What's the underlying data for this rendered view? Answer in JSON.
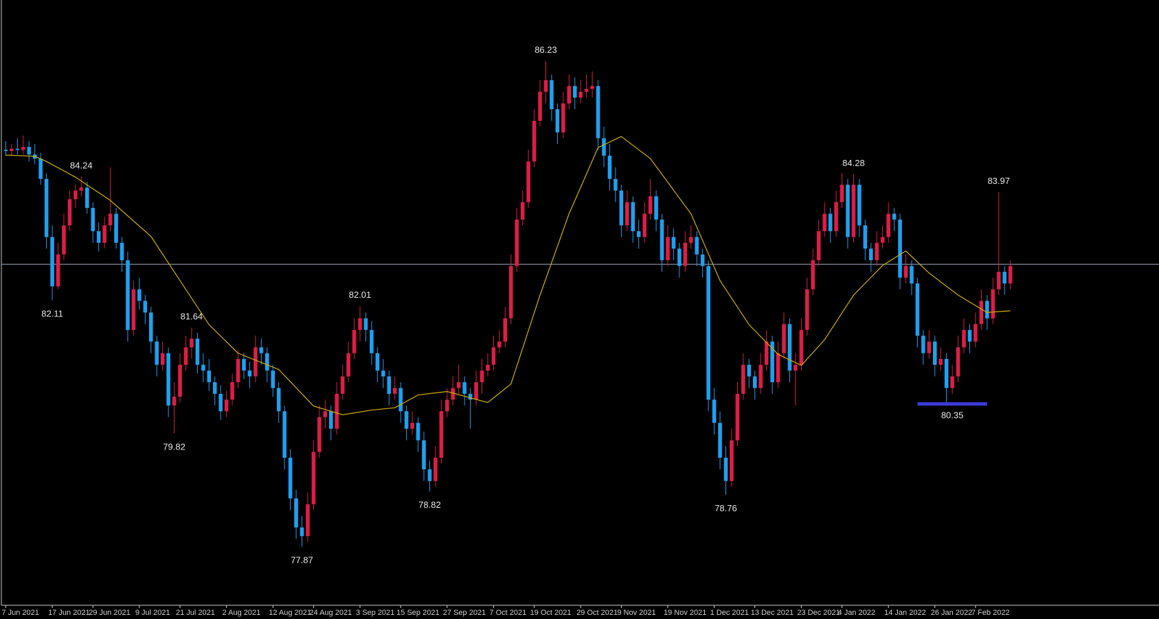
{
  "chart_data": {
    "type": "candlestick",
    "up_color": "#dc1e46",
    "down_color": "#1ea0f0",
    "xlim": [
      -1,
      198.6
    ],
    "ylim": [
      76.86,
      87.28
    ],
    "xticks": [
      {
        "value": 0,
        "label": "7 Jun 2021"
      },
      {
        "value": 8,
        "label": "17 Jun 2021"
      },
      {
        "value": 15,
        "label": "29 Jun 2021"
      },
      {
        "value": 23,
        "label": "9 Jul 2021"
      },
      {
        "value": 30,
        "label": "21 Jul 2021"
      },
      {
        "value": 38,
        "label": "2 Aug 2021"
      },
      {
        "value": 46,
        "label": "12 Aug 2021"
      },
      {
        "value": 53,
        "label": "24 Aug 2021"
      },
      {
        "value": 61,
        "label": "3 Sep 2021"
      },
      {
        "value": 68,
        "label": "15 Sep 2021"
      },
      {
        "value": 76,
        "label": "27 Sep 2021"
      },
      {
        "value": 84,
        "label": "7 Oct 2021"
      },
      {
        "value": 91,
        "label": "19 Oct 2021"
      },
      {
        "value": 99,
        "label": "29 Oct 2021"
      },
      {
        "value": 106,
        "label": "9 Nov 2021"
      },
      {
        "value": 114,
        "label": "19 Nov 2021"
      },
      {
        "value": 122,
        "label": "1 Dec 2021"
      },
      {
        "value": 129,
        "label": "13 Dec 2021"
      },
      {
        "value": 137,
        "label": "23 Dec 2021"
      },
      {
        "value": 144,
        "label": "4 Jan 2022"
      },
      {
        "value": 152,
        "label": "14 Jan 2022"
      },
      {
        "value": 160,
        "label": "26 Jan 2022"
      },
      {
        "value": 167,
        "label": "7 Feb 2022"
      }
    ],
    "candles": [
      [
        84.7,
        84.85,
        84.6,
        84.68
      ],
      [
        84.68,
        84.8,
        84.6,
        84.72
      ],
      [
        84.72,
        84.9,
        84.62,
        84.7
      ],
      [
        84.7,
        84.95,
        84.62,
        84.75
      ],
      [
        84.75,
        84.85,
        84.5,
        84.62
      ],
      [
        84.62,
        84.8,
        84.45,
        84.55
      ],
      [
        84.55,
        84.65,
        84.1,
        84.2
      ],
      [
        84.2,
        84.3,
        83.0,
        83.2
      ],
      [
        83.2,
        83.4,
        82.11,
        82.35
      ],
      [
        82.35,
        83.1,
        82.3,
        82.9
      ],
      [
        82.9,
        83.6,
        82.8,
        83.4
      ],
      [
        83.4,
        84.0,
        83.3,
        83.85
      ],
      [
        83.85,
        84.1,
        83.7,
        84.0
      ],
      [
        84.0,
        84.24,
        83.9,
        84.05
      ],
      [
        84.05,
        84.15,
        83.6,
        83.7
      ],
      [
        83.7,
        83.8,
        83.1,
        83.3
      ],
      [
        83.3,
        83.45,
        82.95,
        83.1
      ],
      [
        83.1,
        83.55,
        83.0,
        83.4
      ],
      [
        83.4,
        84.4,
        83.3,
        83.6
      ],
      [
        83.6,
        83.7,
        83.0,
        83.1
      ],
      [
        83.1,
        83.2,
        82.6,
        82.8
      ],
      [
        82.8,
        82.95,
        81.4,
        81.6
      ],
      [
        81.6,
        82.45,
        81.5,
        82.3
      ],
      [
        82.3,
        82.5,
        81.95,
        82.1
      ],
      [
        82.1,
        82.2,
        81.7,
        81.9
      ],
      [
        81.9,
        82.0,
        81.2,
        81.4
      ],
      [
        81.4,
        81.5,
        80.8,
        81.0
      ],
      [
        81.0,
        81.4,
        80.9,
        81.2
      ],
      [
        81.2,
        81.3,
        80.1,
        80.3
      ],
      [
        80.3,
        80.7,
        79.82,
        80.45
      ],
      [
        80.45,
        81.2,
        80.35,
        81.0
      ],
      [
        81.0,
        81.5,
        80.9,
        81.3
      ],
      [
        81.3,
        81.64,
        81.1,
        81.45
      ],
      [
        81.45,
        81.55,
        80.85,
        81.0
      ],
      [
        81.0,
        81.2,
        80.7,
        80.9
      ],
      [
        80.9,
        81.1,
        80.55,
        80.7
      ],
      [
        80.7,
        80.8,
        80.3,
        80.5
      ],
      [
        80.5,
        80.65,
        80.05,
        80.2
      ],
      [
        80.2,
        80.55,
        80.1,
        80.4
      ],
      [
        80.4,
        80.85,
        80.3,
        80.7
      ],
      [
        80.7,
        81.25,
        80.6,
        81.1
      ],
      [
        81.1,
        81.2,
        80.75,
        80.9
      ],
      [
        80.9,
        81.05,
        80.6,
        80.8
      ],
      [
        80.8,
        81.5,
        80.7,
        81.3
      ],
      [
        81.3,
        81.45,
        81.0,
        81.2
      ],
      [
        81.2,
        81.3,
        80.7,
        80.9
      ],
      [
        80.9,
        81.0,
        80.45,
        80.6
      ],
      [
        80.6,
        80.7,
        80.0,
        80.2
      ],
      [
        80.2,
        80.3,
        79.2,
        79.4
      ],
      [
        79.4,
        79.55,
        78.5,
        78.7
      ],
      [
        78.7,
        78.85,
        78.0,
        78.2
      ],
      [
        78.2,
        78.4,
        77.87,
        78.05
      ],
      [
        78.05,
        78.8,
        77.95,
        78.6
      ],
      [
        78.6,
        79.7,
        78.5,
        79.5
      ],
      [
        79.5,
        80.3,
        79.4,
        80.1
      ],
      [
        80.1,
        80.4,
        79.9,
        80.2
      ],
      [
        80.2,
        80.3,
        79.7,
        79.9
      ],
      [
        79.9,
        80.7,
        79.8,
        80.5
      ],
      [
        80.5,
        81.0,
        80.4,
        80.8
      ],
      [
        80.8,
        81.4,
        80.7,
        81.2
      ],
      [
        81.2,
        81.8,
        81.1,
        81.6
      ],
      [
        81.6,
        82.01,
        81.4,
        81.8
      ],
      [
        81.8,
        81.9,
        81.4,
        81.6
      ],
      [
        81.6,
        81.75,
        81.0,
        81.2
      ],
      [
        81.2,
        81.3,
        80.7,
        80.9
      ],
      [
        80.9,
        81.1,
        80.6,
        80.8
      ],
      [
        80.8,
        80.9,
        80.3,
        80.5
      ],
      [
        80.5,
        80.8,
        80.4,
        80.6
      ],
      [
        80.6,
        80.7,
        80.0,
        80.2
      ],
      [
        80.2,
        80.3,
        79.7,
        79.9
      ],
      [
        79.9,
        80.2,
        79.8,
        80.0
      ],
      [
        80.0,
        80.1,
        79.5,
        79.7
      ],
      [
        79.7,
        79.85,
        79.0,
        79.2
      ],
      [
        79.2,
        79.35,
        78.82,
        79.0
      ],
      [
        79.0,
        79.6,
        78.9,
        79.4
      ],
      [
        79.4,
        80.4,
        79.3,
        80.2
      ],
      [
        80.2,
        80.6,
        80.1,
        80.4
      ],
      [
        80.4,
        80.8,
        80.3,
        80.6
      ],
      [
        80.6,
        81.0,
        80.5,
        80.7
      ],
      [
        80.7,
        80.8,
        80.3,
        80.5
      ],
      [
        80.5,
        80.6,
        79.9,
        80.4
      ],
      [
        80.4,
        80.9,
        80.3,
        80.7
      ],
      [
        80.7,
        81.1,
        80.5,
        80.9
      ],
      [
        80.9,
        81.2,
        80.8,
        81.0
      ],
      [
        81.0,
        81.5,
        80.9,
        81.3
      ],
      [
        81.3,
        81.6,
        81.2,
        81.4
      ],
      [
        81.4,
        82.0,
        81.3,
        81.8
      ],
      [
        81.8,
        82.9,
        81.7,
        82.7
      ],
      [
        82.7,
        83.7,
        82.6,
        83.5
      ],
      [
        83.5,
        84.0,
        83.4,
        83.8
      ],
      [
        83.8,
        84.7,
        83.7,
        84.5
      ],
      [
        84.5,
        85.4,
        84.4,
        85.2
      ],
      [
        85.2,
        85.9,
        85.1,
        85.7
      ],
      [
        85.7,
        86.23,
        85.5,
        85.9
      ],
      [
        85.9,
        86.0,
        85.2,
        85.4
      ],
      [
        85.4,
        85.5,
        84.8,
        85.0
      ],
      [
        85.0,
        85.7,
        84.9,
        85.5
      ],
      [
        85.5,
        86.0,
        85.4,
        85.8
      ],
      [
        85.8,
        85.95,
        85.4,
        85.6
      ],
      [
        85.6,
        85.9,
        85.5,
        85.7
      ],
      [
        85.7,
        86.0,
        85.6,
        85.75
      ],
      [
        85.75,
        86.05,
        85.6,
        85.8
      ],
      [
        85.8,
        85.9,
        84.7,
        84.9
      ],
      [
        84.9,
        85.1,
        84.4,
        84.6
      ],
      [
        84.6,
        84.8,
        84.0,
        84.2
      ],
      [
        84.2,
        84.4,
        83.8,
        84.0
      ],
      [
        84.0,
        84.1,
        83.2,
        83.4
      ],
      [
        83.4,
        84.0,
        83.3,
        83.8
      ],
      [
        83.8,
        83.9,
        83.1,
        83.3
      ],
      [
        83.3,
        83.5,
        83.0,
        83.2
      ],
      [
        83.2,
        83.8,
        83.1,
        83.6
      ],
      [
        83.6,
        84.2,
        83.5,
        83.9
      ],
      [
        83.9,
        84.0,
        83.3,
        83.5
      ],
      [
        83.5,
        83.6,
        82.6,
        82.8
      ],
      [
        82.8,
        83.4,
        82.7,
        83.2
      ],
      [
        83.2,
        83.35,
        82.8,
        83.0
      ],
      [
        83.0,
        83.1,
        82.5,
        82.7
      ],
      [
        82.7,
        83.3,
        82.6,
        83.1
      ],
      [
        83.1,
        83.4,
        83.0,
        83.2
      ],
      [
        83.2,
        83.3,
        82.7,
        82.9
      ],
      [
        82.9,
        83.0,
        82.5,
        82.7
      ],
      [
        82.7,
        82.8,
        80.2,
        80.4
      ],
      [
        80.4,
        80.6,
        79.8,
        80.0
      ],
      [
        80.0,
        80.2,
        79.2,
        79.4
      ],
      [
        79.4,
        79.6,
        78.76,
        79.0
      ],
      [
        79.0,
        79.9,
        78.9,
        79.7
      ],
      [
        79.7,
        80.7,
        79.6,
        80.5
      ],
      [
        80.5,
        81.2,
        80.4,
        81.0
      ],
      [
        81.0,
        81.1,
        80.6,
        80.8
      ],
      [
        80.8,
        80.9,
        80.4,
        80.6
      ],
      [
        80.6,
        81.2,
        80.5,
        81.0
      ],
      [
        81.0,
        81.6,
        80.9,
        81.4
      ],
      [
        81.4,
        81.5,
        80.5,
        80.7
      ],
      [
        80.7,
        81.4,
        80.6,
        81.2
      ],
      [
        81.2,
        81.9,
        81.1,
        81.7
      ],
      [
        81.7,
        81.8,
        80.7,
        80.9
      ],
      [
        80.9,
        81.2,
        80.3,
        81.0
      ],
      [
        81.0,
        81.8,
        80.9,
        81.6
      ],
      [
        81.6,
        82.5,
        81.5,
        82.3
      ],
      [
        82.3,
        83.0,
        82.2,
        82.8
      ],
      [
        82.8,
        83.5,
        82.7,
        83.3
      ],
      [
        83.3,
        83.8,
        83.2,
        83.6
      ],
      [
        83.6,
        83.7,
        83.1,
        83.3
      ],
      [
        83.3,
        84.0,
        83.2,
        83.8
      ],
      [
        83.8,
        84.3,
        83.7,
        84.1
      ],
      [
        84.1,
        84.2,
        83.0,
        83.2
      ],
      [
        83.2,
        84.28,
        83.1,
        84.1
      ],
      [
        84.1,
        84.2,
        83.2,
        83.4
      ],
      [
        83.4,
        83.5,
        82.8,
        83.0
      ],
      [
        83.0,
        83.1,
        82.6,
        82.8
      ],
      [
        82.8,
        83.3,
        82.7,
        83.1
      ],
      [
        83.1,
        83.4,
        83.0,
        83.2
      ],
      [
        83.2,
        83.8,
        83.1,
        83.6
      ],
      [
        83.6,
        83.7,
        83.3,
        83.5
      ],
      [
        83.5,
        83.6,
        82.3,
        82.5
      ],
      [
        82.5,
        82.9,
        82.4,
        82.7
      ],
      [
        82.7,
        82.8,
        82.2,
        82.4
      ],
      [
        82.4,
        82.5,
        81.3,
        81.5
      ],
      [
        81.5,
        81.6,
        81.0,
        81.2
      ],
      [
        81.2,
        81.6,
        81.1,
        81.4
      ],
      [
        81.4,
        81.5,
        80.8,
        81.0
      ],
      [
        81.0,
        81.3,
        80.9,
        81.1
      ],
      [
        81.1,
        81.2,
        80.35,
        80.6
      ],
      [
        80.6,
        81.0,
        80.5,
        80.8
      ],
      [
        80.8,
        81.5,
        80.7,
        81.3
      ],
      [
        81.3,
        81.8,
        81.2,
        81.6
      ],
      [
        81.6,
        81.7,
        81.2,
        81.4
      ],
      [
        81.4,
        81.9,
        81.3,
        81.7
      ],
      [
        81.7,
        82.3,
        81.6,
        82.1
      ],
      [
        82.1,
        82.2,
        81.6,
        81.8
      ],
      [
        81.8,
        82.5,
        81.7,
        82.3
      ],
      [
        82.3,
        83.97,
        82.2,
        82.6
      ],
      [
        82.6,
        82.7,
        82.2,
        82.4
      ],
      [
        82.4,
        82.8,
        82.3,
        82.7
      ]
    ],
    "annotations": [
      {
        "candle": 8,
        "at": "low"
      },
      {
        "candle": 13,
        "at": "high"
      },
      {
        "candle": 29,
        "at": "low"
      },
      {
        "candle": 32,
        "at": "high"
      },
      {
        "candle": 51,
        "at": "low"
      },
      {
        "candle": 61,
        "at": "high"
      },
      {
        "candle": 73,
        "at": "low"
      },
      {
        "candle": 93,
        "at": "high"
      },
      {
        "candle": 124,
        "at": "low"
      },
      {
        "candle": 146,
        "at": "high"
      },
      {
        "candle": 171,
        "at": "high"
      }
    ],
    "moving_average": {
      "color": "#d4b200",
      "x": [
        0,
        5,
        7,
        12,
        18,
        25,
        30,
        35,
        40,
        47,
        53,
        58,
        63,
        67,
        71,
        76,
        83,
        87,
        92,
        97,
        102,
        106,
        111,
        118,
        123,
        128,
        133,
        137,
        141,
        146,
        151,
        155,
        159,
        164,
        169,
        173
      ],
      "values": [
        84.61,
        84.59,
        84.5,
        84.23,
        83.83,
        83.21,
        82.45,
        81.69,
        81.2,
        80.92,
        80.29,
        80.14,
        80.22,
        80.26,
        80.48,
        80.54,
        80.35,
        80.67,
        82.2,
        83.6,
        84.74,
        84.93,
        84.55,
        83.6,
        82.45,
        81.69,
        81.18,
        80.99,
        81.43,
        82.2,
        82.71,
        82.96,
        82.58,
        82.2,
        81.9,
        81.93
      ]
    },
    "price_line": {
      "value": 82.73,
      "color": "#9fb4c8"
    },
    "support": {
      "value": 80.35,
      "from": 157,
      "to": 169,
      "color": "#3b3bd6"
    }
  }
}
